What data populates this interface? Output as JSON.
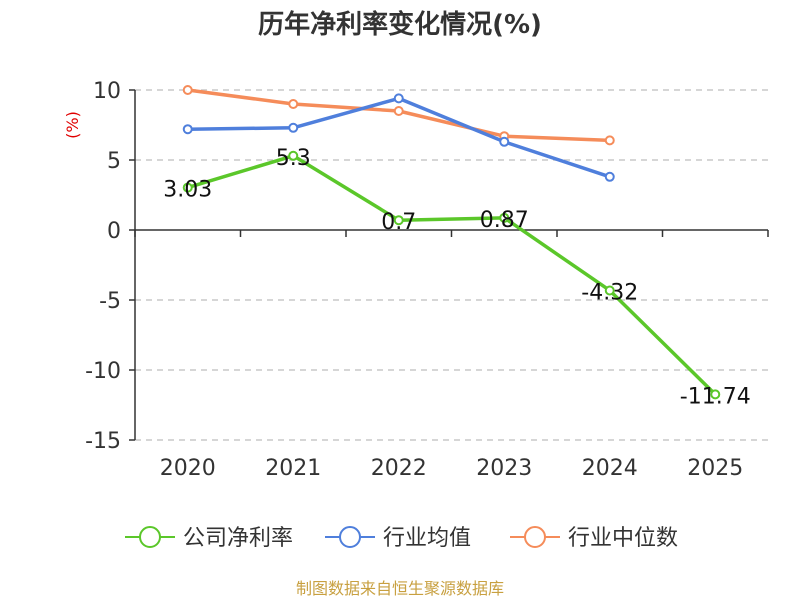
{
  "chart_data": {
    "type": "line",
    "title": "历年净利率变化情况(%)",
    "ylabel": "(%)",
    "xlabel": "",
    "categories": [
      "2020",
      "2021",
      "2022",
      "2023",
      "2024",
      "2025"
    ],
    "ylim": [
      -15,
      10
    ],
    "yticks": [
      10,
      5,
      0,
      -5,
      -10,
      -15
    ],
    "grid": true,
    "legend_position": "bottom",
    "series": [
      {
        "name": "公司净利率",
        "color": "#5bc72a",
        "values": [
          3.03,
          5.3,
          0.7,
          0.87,
          -4.32,
          -11.74
        ],
        "labels": [
          "3.03",
          "5.3",
          "0.7",
          "0.87",
          "-4.32",
          "-11.74"
        ]
      },
      {
        "name": "行业均值",
        "color": "#4f7fdc",
        "values": [
          7.2,
          7.3,
          9.4,
          6.3,
          3.8,
          null
        ]
      },
      {
        "name": "行业中位数",
        "color": "#f58c5a",
        "values": [
          10.0,
          9.0,
          8.5,
          6.7,
          6.4,
          null
        ]
      }
    ]
  },
  "footer": {
    "source": "制图数据来自恒生聚源数据库"
  }
}
